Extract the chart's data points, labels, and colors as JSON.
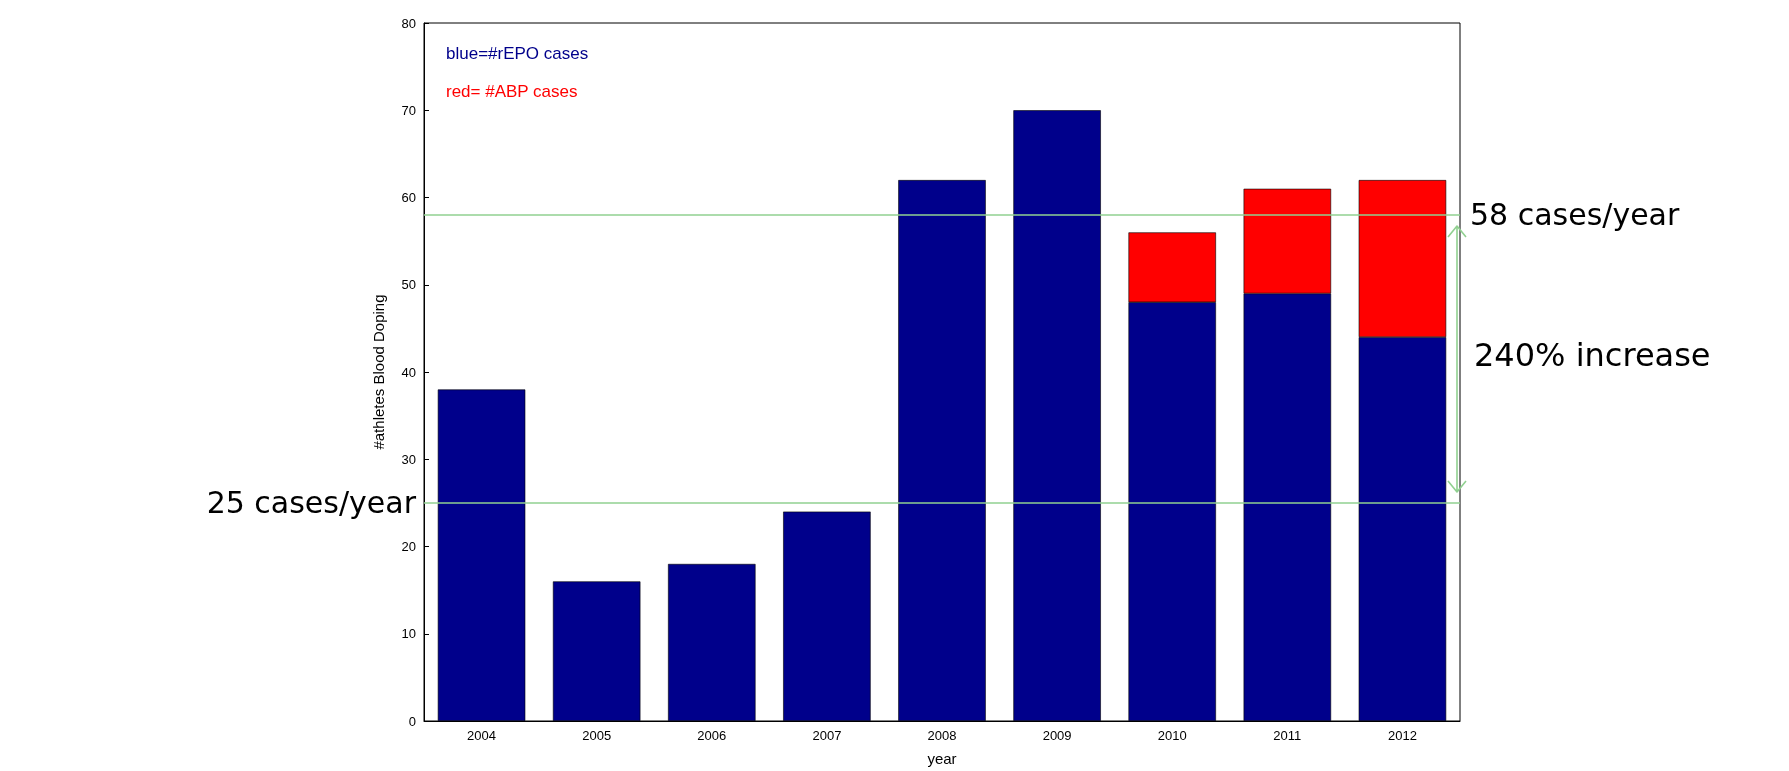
{
  "chart_data": {
    "type": "bar",
    "stacked": true,
    "xlabel": "year",
    "ylabel": "#athletes Blood Doping",
    "categories": [
      "2004",
      "2005",
      "2006",
      "2007",
      "2008",
      "2009",
      "2010",
      "2011",
      "2012"
    ],
    "series": [
      {
        "color": "#00008b",
        "values": [
          38,
          16,
          18,
          24,
          62,
          70,
          48,
          49,
          44
        ]
      },
      {
        "color": "#ff0000",
        "values": [
          null,
          null,
          null,
          null,
          null,
          null,
          8,
          12,
          18
        ]
      }
    ],
    "ylim": [
      0,
      80
    ],
    "yticks": [
      0,
      10,
      20,
      30,
      40,
      50,
      60,
      70,
      80
    ],
    "grid": false,
    "ref_lines": [
      {
        "axis": "y",
        "value": 25,
        "label": "25 cases/year",
        "color": "#90d090"
      },
      {
        "axis": "y",
        "value": 58,
        "label": "58 cases/year",
        "color": "#90d090"
      }
    ],
    "annotations": [
      "blue=#rEPO cases",
      "red= #ABP cases",
      "240% increase"
    ]
  }
}
